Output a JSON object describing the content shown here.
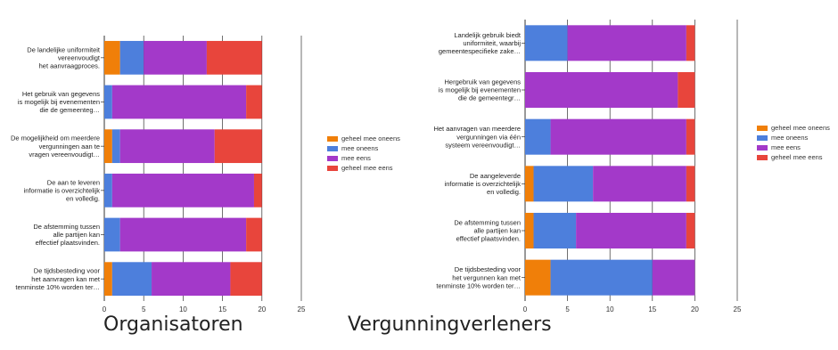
{
  "colors": {
    "geheel mee oneens": "#f07f09",
    "mee oneens": "#4d7fdc",
    "mee eens": "#a339c9",
    "geheel mee eens": "#e8453c",
    "axis": "#333333",
    "grid": "#333333"
  },
  "chart_data": [
    {
      "type": "bar",
      "orientation": "horizontal",
      "stacked": true,
      "title": "Organisatoren",
      "categories": [
        [
          "De landelijke uniformiteit",
          "vereenvoudigt",
          "het aanvraagproces."
        ],
        [
          "Het gebruik van gegevens",
          "is mogelijk bij evenementen",
          "die de gemeenteg…"
        ],
        [
          "De mogelijkheid om meerdere",
          "vergunningen aan te",
          "vragen vereenvoudigt…"
        ],
        [
          "De aan te leveren",
          "informatie is overzichtelijk",
          "en volledig."
        ],
        [
          "De afstemming tussen",
          "alle partijen kan",
          "effectief plaatsvinden."
        ],
        [
          "De tijdsbesteding voor",
          "het aanvragen kan met",
          "tenminste 10% worden ter…"
        ]
      ],
      "series": [
        {
          "name": "geheel mee oneens",
          "values": [
            2,
            0,
            1,
            0,
            0,
            1
          ]
        },
        {
          "name": "mee oneens",
          "values": [
            3,
            1,
            1,
            1,
            2,
            5
          ]
        },
        {
          "name": "mee eens",
          "values": [
            8,
            17,
            12,
            18,
            16,
            10
          ]
        },
        {
          "name": "geheel mee eens",
          "values": [
            7,
            2,
            6,
            1,
            2,
            4
          ]
        }
      ],
      "xlim": [
        0,
        25
      ],
      "xticks": [
        0,
        5,
        10,
        15,
        20,
        25
      ],
      "grid": true,
      "legend": "right"
    },
    {
      "type": "bar",
      "orientation": "horizontal",
      "stacked": true,
      "title": "Vergunningverleners",
      "categories": [
        [
          "Landelijk gebruik biedt",
          "uniformiteit, waarbij",
          "gemeentespecifieke zake…"
        ],
        [
          "Hergebruik van gegevens",
          "is mogelijk bij evenementen",
          "die de gemeentegr…"
        ],
        [
          "Het aanvragen van meerdere",
          "vergunningen via één",
          "systeem vereenvoudigt…"
        ],
        [
          "De aangeleverde",
          "informatie is overzichtelijk",
          "en volledig."
        ],
        [
          "De afstemming tussen",
          "alle partijen kan",
          "effectief plaatsvinden."
        ],
        [
          "De tijdsbesteding voor",
          "het vergunnen kan met",
          "tenminste 10% worden ter…"
        ]
      ],
      "series": [
        {
          "name": "geheel mee oneens",
          "values": [
            0,
            0,
            0,
            1,
            1,
            3
          ]
        },
        {
          "name": "mee oneens",
          "values": [
            5,
            0,
            3,
            7,
            5,
            12
          ]
        },
        {
          "name": "mee eens",
          "values": [
            14,
            18,
            16,
            11,
            13,
            5
          ]
        },
        {
          "name": "geheel mee eens",
          "values": [
            1,
            2,
            1,
            1,
            1,
            0
          ]
        }
      ],
      "xlim": [
        0,
        25
      ],
      "xticks": [
        0,
        5,
        10,
        15,
        20,
        25
      ],
      "grid": true,
      "legend": "right"
    }
  ],
  "legend": {
    "items": [
      "geheel mee oneens",
      "mee oneens",
      "mee eens",
      "geheel mee eens"
    ]
  },
  "captions": {
    "left": "Organisatoren",
    "right": "Vergunningverleners"
  }
}
